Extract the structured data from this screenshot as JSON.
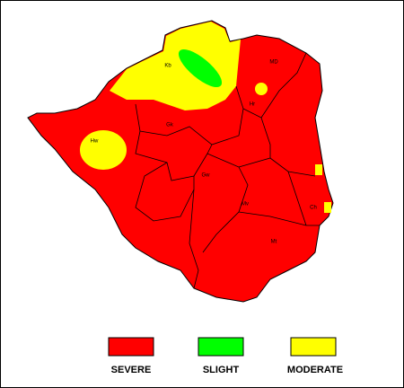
{
  "map": {
    "labels": [
      "Kb",
      "MD",
      "Hw",
      "Gk",
      "Gw",
      "Mv",
      "Ch",
      "Mt",
      "Hr"
    ],
    "legend": [
      {
        "label": "SEVERE",
        "color": "#ff0000"
      },
      {
        "label": "SLIGHT",
        "color": "#00ff00"
      },
      {
        "label": "MODERATE",
        "color": "#ffff00"
      }
    ]
  }
}
